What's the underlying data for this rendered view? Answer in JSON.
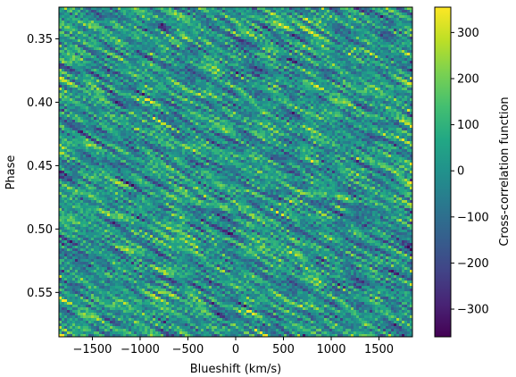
{
  "chart_data": {
    "type": "heatmap",
    "title": "",
    "xlabel": "Blueshift (km/s)",
    "ylabel": "Phase",
    "colorbar_label": "Cross-correlation function",
    "colormap": "viridis",
    "xlim": [
      -1850,
      1850
    ],
    "ylim": [
      0.585,
      0.325
    ],
    "y_inverted": true,
    "x_ticks": [
      -1500,
      -1000,
      -500,
      0,
      500,
      1000,
      1500
    ],
    "x_tick_labels": [
      "−1500",
      "−1000",
      "−500",
      "0",
      "500",
      "1000",
      "1500"
    ],
    "y_ticks": [
      0.35,
      0.4,
      0.45,
      0.5,
      0.55
    ],
    "y_tick_labels": [
      "0.35",
      "0.40",
      "0.45",
      "0.50",
      "0.55"
    ],
    "clim": [
      -360,
      355
    ],
    "colorbar_ticks": [
      300,
      200,
      100,
      0,
      -100,
      -200,
      -300
    ],
    "colorbar_tick_labels": [
      "300",
      "200",
      "100",
      "0",
      "−100",
      "−200",
      "−300"
    ],
    "grid": false,
    "legend": "none"
  }
}
